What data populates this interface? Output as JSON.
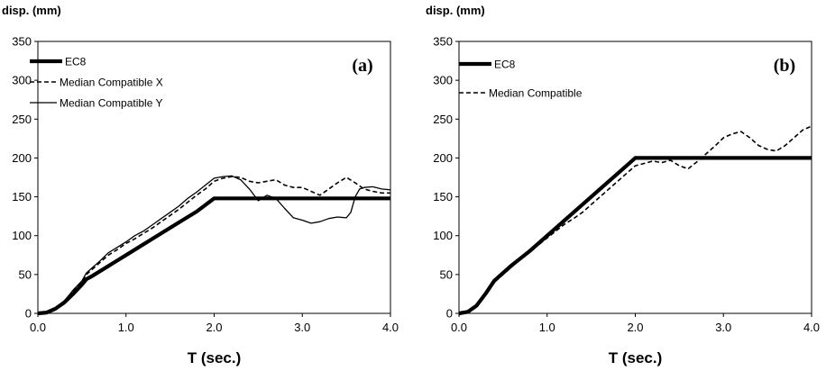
{
  "chart_data": [
    {
      "type": "line",
      "panel_label": "(a)",
      "ylabel": "disp. (mm)",
      "xlabel": "T (sec.)",
      "xlim": [
        0.0,
        4.0
      ],
      "ylim": [
        0,
        350
      ],
      "x_ticks": [
        "0.0",
        "1.0",
        "2.0",
        "3.0",
        "4.0"
      ],
      "y_ticks": [
        "0",
        "50",
        "100",
        "150",
        "200",
        "250",
        "300",
        "350"
      ],
      "legend_position": "top-left",
      "series": [
        {
          "name": "EC8",
          "style": "thick-solid",
          "points": [
            [
              0.0,
              0
            ],
            [
              0.1,
              1
            ],
            [
              0.2,
              6
            ],
            [
              0.3,
              14
            ],
            [
              0.4,
              25
            ],
            [
              0.5,
              37
            ],
            [
              0.55,
              44
            ],
            [
              0.6,
              47
            ],
            [
              0.8,
              61
            ],
            [
              1.0,
              75
            ],
            [
              1.2,
              89
            ],
            [
              1.4,
              103
            ],
            [
              1.6,
              117
            ],
            [
              1.8,
              131
            ],
            [
              2.0,
              148
            ],
            [
              2.5,
              148
            ],
            [
              3.0,
              148
            ],
            [
              3.5,
              148
            ],
            [
              4.0,
              148
            ]
          ]
        },
        {
          "name": "Median Compatible X",
          "style": "dashed",
          "points": [
            [
              0.0,
              0
            ],
            [
              0.1,
              1
            ],
            [
              0.2,
              6
            ],
            [
              0.3,
              15
            ],
            [
              0.4,
              28
            ],
            [
              0.5,
              40
            ],
            [
              0.55,
              50
            ],
            [
              0.6,
              55
            ],
            [
              0.7,
              65
            ],
            [
              0.8,
              75
            ],
            [
              0.9,
              82
            ],
            [
              1.0,
              90
            ],
            [
              1.1,
              96
            ],
            [
              1.2,
              103
            ],
            [
              1.3,
              110
            ],
            [
              1.4,
              118
            ],
            [
              1.5,
              126
            ],
            [
              1.6,
              134
            ],
            [
              1.7,
              143
            ],
            [
              1.8,
              152
            ],
            [
              1.9,
              160
            ],
            [
              2.0,
              170
            ],
            [
              2.1,
              174
            ],
            [
              2.2,
              176
            ],
            [
              2.3,
              175
            ],
            [
              2.4,
              170
            ],
            [
              2.5,
              168
            ],
            [
              2.6,
              170
            ],
            [
              2.7,
              172
            ],
            [
              2.8,
              165
            ],
            [
              2.9,
              162
            ],
            [
              3.0,
              162
            ],
            [
              3.1,
              157
            ],
            [
              3.2,
              152
            ],
            [
              3.3,
              160
            ],
            [
              3.4,
              168
            ],
            [
              3.5,
              175
            ],
            [
              3.6,
              168
            ],
            [
              3.7,
              160
            ],
            [
              3.8,
              157
            ],
            [
              3.9,
              155
            ],
            [
              4.0,
              155
            ]
          ]
        },
        {
          "name": "Median Compatible Y",
          "style": "thin-solid",
          "points": [
            [
              0.0,
              0
            ],
            [
              0.1,
              1
            ],
            [
              0.2,
              7
            ],
            [
              0.3,
              16
            ],
            [
              0.4,
              30
            ],
            [
              0.5,
              42
            ],
            [
              0.55,
              52
            ],
            [
              0.6,
              57
            ],
            [
              0.7,
              67
            ],
            [
              0.8,
              78
            ],
            [
              0.9,
              85
            ],
            [
              1.0,
              92
            ],
            [
              1.1,
              100
            ],
            [
              1.2,
              106
            ],
            [
              1.3,
              114
            ],
            [
              1.4,
              122
            ],
            [
              1.5,
              130
            ],
            [
              1.6,
              138
            ],
            [
              1.7,
              148
            ],
            [
              1.8,
              156
            ],
            [
              1.9,
              165
            ],
            [
              2.0,
              174
            ],
            [
              2.1,
              176
            ],
            [
              2.2,
              177
            ],
            [
              2.3,
              172
            ],
            [
              2.4,
              160
            ],
            [
              2.5,
              145
            ],
            [
              2.6,
              152
            ],
            [
              2.7,
              148
            ],
            [
              2.8,
              135
            ],
            [
              2.9,
              123
            ],
            [
              3.0,
              120
            ],
            [
              3.1,
              116
            ],
            [
              3.2,
              118
            ],
            [
              3.3,
              122
            ],
            [
              3.4,
              124
            ],
            [
              3.5,
              123
            ],
            [
              3.55,
              130
            ],
            [
              3.6,
              150
            ],
            [
              3.65,
              160
            ],
            [
              3.7,
              162
            ],
            [
              3.8,
              163
            ],
            [
              3.9,
              160
            ],
            [
              4.0,
              159
            ]
          ]
        }
      ]
    },
    {
      "type": "line",
      "panel_label": "(b)",
      "ylabel": "disp. (mm)",
      "xlabel": "T (sec.)",
      "xlim": [
        0.0,
        4.0
      ],
      "ylim": [
        0,
        350
      ],
      "x_ticks": [
        "0.0",
        "1.0",
        "2.0",
        "3.0",
        "4.0"
      ],
      "y_ticks": [
        "0",
        "50",
        "100",
        "150",
        "200",
        "250",
        "300",
        "350"
      ],
      "legend_position": "top-left",
      "series": [
        {
          "name": "EC8",
          "style": "thick-solid",
          "points": [
            [
              0.0,
              0
            ],
            [
              0.1,
              2
            ],
            [
              0.2,
              10
            ],
            [
              0.3,
              25
            ],
            [
              0.4,
              42
            ],
            [
              0.5,
              52
            ],
            [
              0.6,
              62
            ],
            [
              0.8,
              80
            ],
            [
              1.0,
              100
            ],
            [
              1.2,
              120
            ],
            [
              1.4,
              140
            ],
            [
              1.6,
              160
            ],
            [
              1.8,
              180
            ],
            [
              2.0,
              200
            ],
            [
              2.5,
              200
            ],
            [
              3.0,
              200
            ],
            [
              3.5,
              200
            ],
            [
              4.0,
              200
            ]
          ]
        },
        {
          "name": "Median Compatible",
          "style": "dashed",
          "points": [
            [
              0.0,
              0
            ],
            [
              0.1,
              2
            ],
            [
              0.2,
              9
            ],
            [
              0.3,
              24
            ],
            [
              0.4,
              40
            ],
            [
              0.5,
              50
            ],
            [
              0.6,
              60
            ],
            [
              0.7,
              70
            ],
            [
              0.8,
              79
            ],
            [
              0.9,
              88
            ],
            [
              1.0,
              97
            ],
            [
              1.1,
              106
            ],
            [
              1.2,
              115
            ],
            [
              1.3,
              122
            ],
            [
              1.4,
              130
            ],
            [
              1.5,
              140
            ],
            [
              1.6,
              150
            ],
            [
              1.7,
              160
            ],
            [
              1.8,
              170
            ],
            [
              1.9,
              180
            ],
            [
              2.0,
              190
            ],
            [
              2.1,
              193
            ],
            [
              2.2,
              196
            ],
            [
              2.3,
              194
            ],
            [
              2.4,
              197
            ],
            [
              2.5,
              190
            ],
            [
              2.6,
              186
            ],
            [
              2.7,
              195
            ],
            [
              2.8,
              205
            ],
            [
              2.9,
              215
            ],
            [
              3.0,
              226
            ],
            [
              3.1,
              231
            ],
            [
              3.2,
              234
            ],
            [
              3.3,
              226
            ],
            [
              3.4,
              216
            ],
            [
              3.5,
              211
            ],
            [
              3.6,
              209
            ],
            [
              3.7,
              216
            ],
            [
              3.8,
              226
            ],
            [
              3.9,
              236
            ],
            [
              4.0,
              241
            ]
          ]
        }
      ]
    }
  ]
}
